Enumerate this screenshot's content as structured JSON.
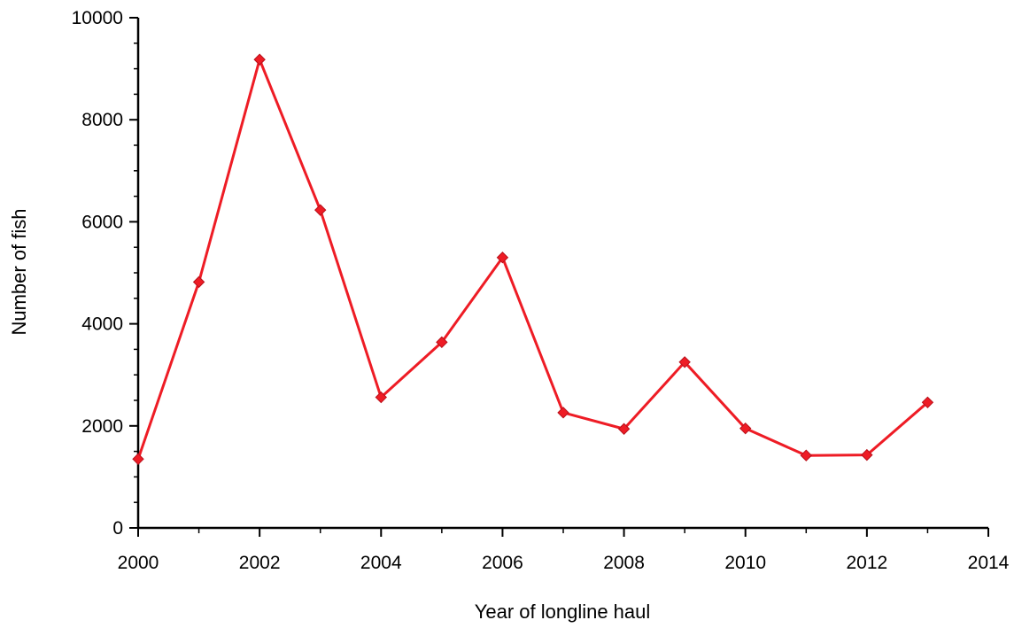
{
  "chart_data": {
    "type": "line",
    "xlabel": "Year of longline haul",
    "ylabel": "Number of fish",
    "xlim": [
      2000,
      2014
    ],
    "ylim": [
      0,
      10000
    ],
    "x_ticks": [
      2000,
      2002,
      2004,
      2006,
      2008,
      2010,
      2012,
      2014
    ],
    "y_ticks": [
      0,
      2000,
      4000,
      6000,
      8000,
      10000
    ],
    "grid": false,
    "series": [
      {
        "color": "#ee1c25",
        "marker": "diamond",
        "x": [
          2000,
          2001,
          2002,
          2003,
          2004,
          2005,
          2006,
          2007,
          2008,
          2009,
          2010,
          2011,
          2012,
          2013
        ],
        "y": [
          1350,
          4820,
          9180,
          6230,
          2560,
          3640,
          5300,
          2260,
          1940,
          3250,
          1950,
          1420,
          1430,
          2460
        ]
      }
    ]
  }
}
